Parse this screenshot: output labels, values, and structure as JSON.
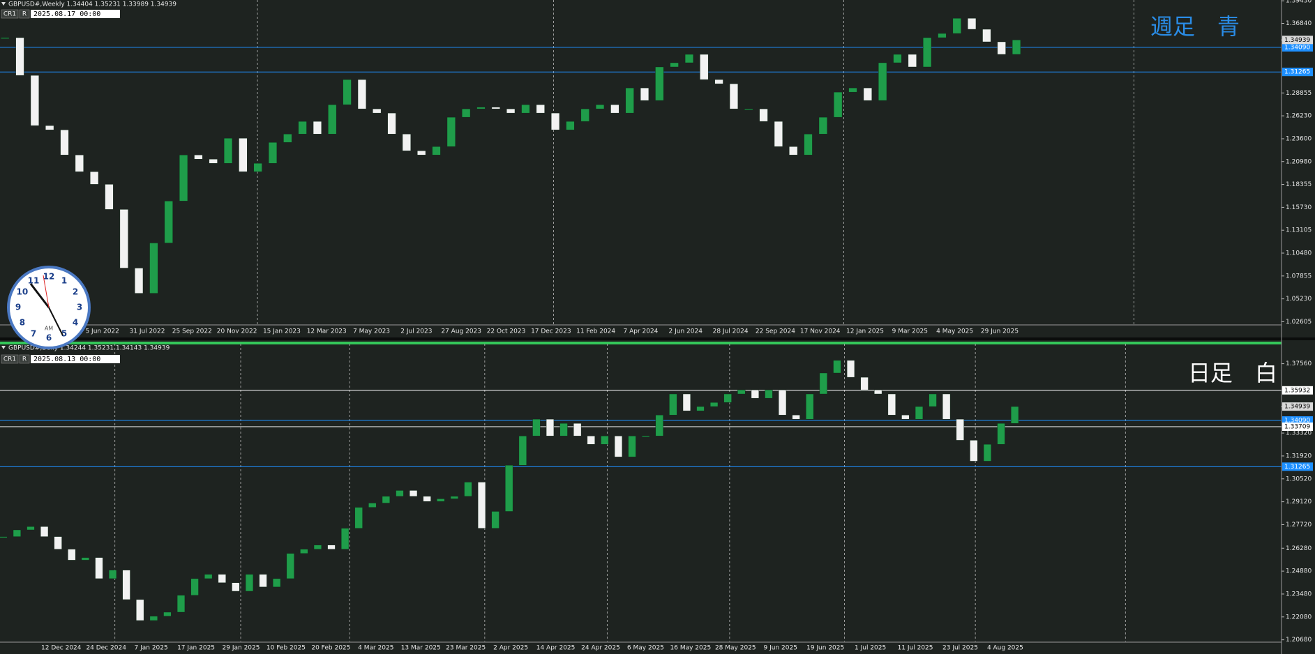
{
  "chart_data": [
    {
      "type": "candlestick",
      "header": "GBPUSD#,Weekly  1.34404 1.35231 1.33989 1.34939",
      "badges": [
        "CR1",
        "R"
      ],
      "timestamp": "2025.08.17 00:00",
      "annotation": "週足　青",
      "annotation_color": "#2a8ce6",
      "date_labels": [
        "5 Jun 2022",
        "31 Jul 2022",
        "25 Sep 2022",
        "20 Nov 2022",
        "15 Jan 2023",
        "12 Mar 2023",
        "7 May 2023",
        "2 Jul 2023",
        "27 Aug 2023",
        "22 Oct 2023",
        "17 Dec 2023",
        "11 Feb 2024",
        "7 Apr 2024",
        "2 Jun 2024",
        "28 Jul 2024",
        "22 Sep 2024",
        "17 Nov 2024",
        "12 Jan 2025",
        "9 Mar 2025",
        "4 May 2025",
        "29 Jun 2025"
      ],
      "values": [
        1.352,
        1.3087,
        1.2511,
        1.2462,
        1.2174,
        1.1982,
        1.1837,
        1.1549,
        1.0876,
        1.0587,
        1.1164,
        1.1645,
        1.2174,
        1.2126,
        1.2078,
        1.2366,
        1.1982,
        1.2078,
        1.2318,
        1.2414,
        1.2559,
        1.2414,
        1.2751,
        1.3039,
        1.2703,
        1.2655,
        1.2414,
        1.2222,
        1.2174,
        1.227,
        1.2607,
        1.2703,
        1.2722,
        1.2703,
        1.2655,
        1.2751,
        1.2655,
        1.2462,
        1.2559,
        1.2703,
        1.2751,
        1.2655,
        1.2943,
        1.2799,
        1.3184,
        1.3232,
        1.3328,
        1.3039,
        1.2991,
        1.2703,
        1.2703,
        1.2559,
        1.227,
        1.2174,
        1.2414,
        1.2607,
        1.2895,
        1.2943,
        1.2799,
        1.3232,
        1.3328,
        1.3184,
        1.352,
        1.3568,
        1.3742,
        1.3616,
        1.3472,
        1.3328,
        1.3494
      ],
      "up_color": "#1f9d4a",
      "down_color": "#f2f2f2",
      "ylim": [
        1.0232,
        1.3952
      ],
      "yticks": [
        {
          "value": 1.3943,
          "label": "1.39430"
        },
        {
          "value": 1.3684,
          "label": "1.36840"
        },
        1.28855,
        {
          "value": 1.2623,
          "label": "1.26230"
        },
        {
          "value": 1.236,
          "label": "1.23600"
        },
        {
          "value": 1.2098,
          "label": "1.20980"
        },
        1.18355,
        {
          "value": 1.1573,
          "label": "1.15730"
        },
        1.13105,
        {
          "value": 1.1048,
          "label": "1.10480"
        },
        1.07855,
        {
          "value": 1.0523,
          "label": "1.05230"
        },
        1.02605
      ],
      "levels": [
        {
          "value": 1.3409,
          "label": "1.34090",
          "color": "#1e90ff"
        },
        {
          "value": 1.31265,
          "label": "1.31265",
          "color": "#1e90ff"
        }
      ],
      "last_price": 1.34939
    },
    {
      "type": "candlestick",
      "header": "GBPUSD#,Daily  1.34244 1.35231 1.34143 1.34939",
      "badges": [
        "CR1",
        "R"
      ],
      "timestamp": "2025.08.13 00:00",
      "annotation": "日足　白",
      "annotation_color": "#ffffff",
      "date_labels": [
        "12 Dec 2024",
        "24 Dec 2024",
        "7 Jan 2025",
        "17 Jan 2025",
        "29 Jan 2025",
        "10 Feb 2025",
        "20 Feb 2025",
        "4 Mar 2025",
        "13 Mar 2025",
        "23 Mar 2025",
        "2 Apr 2025",
        "14 Apr 2025",
        "24 Apr 2025",
        "6 May 2025",
        "16 May 2025",
        "28 May 2025",
        "9 Jun 2025",
        "19 Jun 2025",
        "1 Jul 2025",
        "11 Jul 2025",
        "23 Jul 2025",
        "4 Aug 2025"
      ],
      "values": [
        1.2699,
        1.274,
        1.276,
        1.2699,
        1.2622,
        1.2555,
        1.2571,
        1.2442,
        1.2494,
        1.2314,
        1.2186,
        1.2212,
        1.2237,
        1.234,
        1.2442,
        1.2468,
        1.2417,
        1.2365,
        1.2468,
        1.2391,
        1.2442,
        1.2596,
        1.2622,
        1.2647,
        1.2622,
        1.275,
        1.2878,
        1.2904,
        1.2945,
        1.2981,
        1.2945,
        1.2914,
        1.293,
        1.2945,
        1.3032,
        1.275,
        1.2853,
        1.3135,
        1.3314,
        1.3417,
        1.3314,
        1.3391,
        1.3314,
        1.3263,
        1.3314,
        1.3186,
        1.3314,
        1.3314,
        1.3442,
        1.3571,
        1.3468,
        1.3494,
        1.3519,
        1.3571,
        1.3596,
        1.3545,
        1.3596,
        1.3442,
        1.3417,
        1.3571,
        1.3699,
        1.3776,
        1.3673,
        1.3596,
        1.3571,
        1.3442,
        1.3417,
        1.3494,
        1.3571,
        1.3417,
        1.3288,
        1.316,
        1.3263,
        1.3391,
        1.3494
      ],
      "up_color": "#1f9d4a",
      "down_color": "#f2f2f2",
      "ylim": [
        1.2058,
        1.3878
      ],
      "yticks": [
        {
          "value": 1.3756,
          "label": "1.37560"
        },
        {
          "value": 1.3332,
          "label": "1.33320"
        },
        {
          "value": 1.3192,
          "label": "1.31920"
        },
        {
          "value": 1.3052,
          "label": "1.30520"
        },
        {
          "value": 1.2912,
          "label": "1.29120"
        },
        {
          "value": 1.2772,
          "label": "1.27720"
        },
        {
          "value": 1.2628,
          "label": "1.26280"
        },
        {
          "value": 1.2488,
          "label": "1.24880"
        },
        {
          "value": 1.2348,
          "label": "1.23480"
        },
        {
          "value": 1.2208,
          "label": "1.22080"
        },
        {
          "value": 1.2068,
          "label": "1.20680"
        }
      ],
      "levels": [
        {
          "value": 1.35932,
          "label": "1.35932",
          "color": "#ffffff"
        },
        {
          "value": 1.3409,
          "label": "1.34090",
          "color": "#1e90ff"
        },
        {
          "value": 1.33709,
          "label": "1.33709",
          "color": "#ffffff"
        },
        {
          "value": 1.31265,
          "label": "1.31265",
          "color": "#1e90ff"
        }
      ],
      "last_price": 1.34939
    }
  ],
  "clock": {
    "numbers": [
      "12",
      "1",
      "2",
      "3",
      "4",
      "5",
      "6",
      "7",
      "8",
      "9",
      "10",
      "11"
    ],
    "period": "AM"
  }
}
